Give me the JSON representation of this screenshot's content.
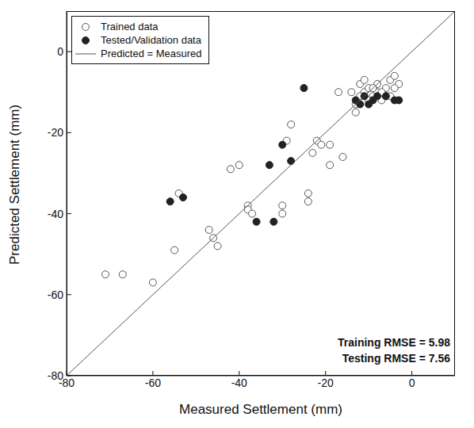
{
  "chart_data": {
    "type": "scatter",
    "xlabel": "Measured Settlement (mm)",
    "ylabel": "Predicted Settlement (mm)",
    "xlim": [
      -80,
      10
    ],
    "ylim": [
      -80,
      10
    ],
    "xticks": [
      -80,
      -60,
      -40,
      -20,
      0
    ],
    "yticks": [
      -80,
      -60,
      -40,
      -20,
      0
    ],
    "legend": "upper left",
    "series": [
      {
        "name": "Trained data",
        "type": "scatter",
        "marker": "open_circle",
        "color": "#555555",
        "x": [
          -71,
          -67,
          -60,
          -55,
          -54,
          -47,
          -46,
          -45,
          -42,
          -40,
          -38,
          -38,
          -37,
          -30,
          -30,
          -28,
          -29,
          -22,
          -21,
          -23,
          -24,
          -24,
          -19,
          -19,
          -16,
          -17,
          -13,
          -13,
          -12,
          -11,
          -10,
          -9,
          -8,
          -7,
          -6,
          -5,
          -4,
          -3,
          -12,
          -10,
          -8,
          -6,
          -4,
          -14,
          -11,
          -9,
          -7,
          -5
        ],
        "y": [
          -55,
          -55,
          -57,
          -49,
          -35,
          -44,
          -46,
          -48,
          -29,
          -28,
          -38,
          -39,
          -40,
          -38,
          -40,
          -18,
          -22,
          -22,
          -23,
          -25,
          -35,
          -37,
          -28,
          -23,
          -26,
          -10,
          -15,
          -13,
          -8,
          -10,
          -9,
          -11,
          -8,
          -12,
          -9,
          -7,
          -6,
          -8,
          -11,
          -12,
          -10,
          -11,
          -9,
          -10,
          -7,
          -9,
          -10,
          -11
        ]
      },
      {
        "name": "Tested/Validation data",
        "type": "scatter",
        "marker": "circle",
        "color": "#222222",
        "x": [
          -56,
          -53,
          -36,
          -33,
          -32,
          -30,
          -28,
          -25,
          -13,
          -11,
          -10,
          -9,
          -8,
          -6,
          -4,
          -12,
          -3
        ],
        "y": [
          -37,
          -36,
          -42,
          -28,
          -42,
          -23,
          -27,
          -9,
          -12,
          -11,
          -13,
          -12,
          -11,
          -11,
          -12,
          -13,
          -12
        ]
      },
      {
        "name": "Predicted = Measured",
        "type": "line",
        "line_style": "solid",
        "color": "#555555",
        "x": [
          -80,
          10
        ],
        "y": [
          -80,
          10
        ]
      }
    ],
    "annotations": [
      "Training RMSE = 5.98",
      "Testing RMSE = 7.56"
    ]
  }
}
